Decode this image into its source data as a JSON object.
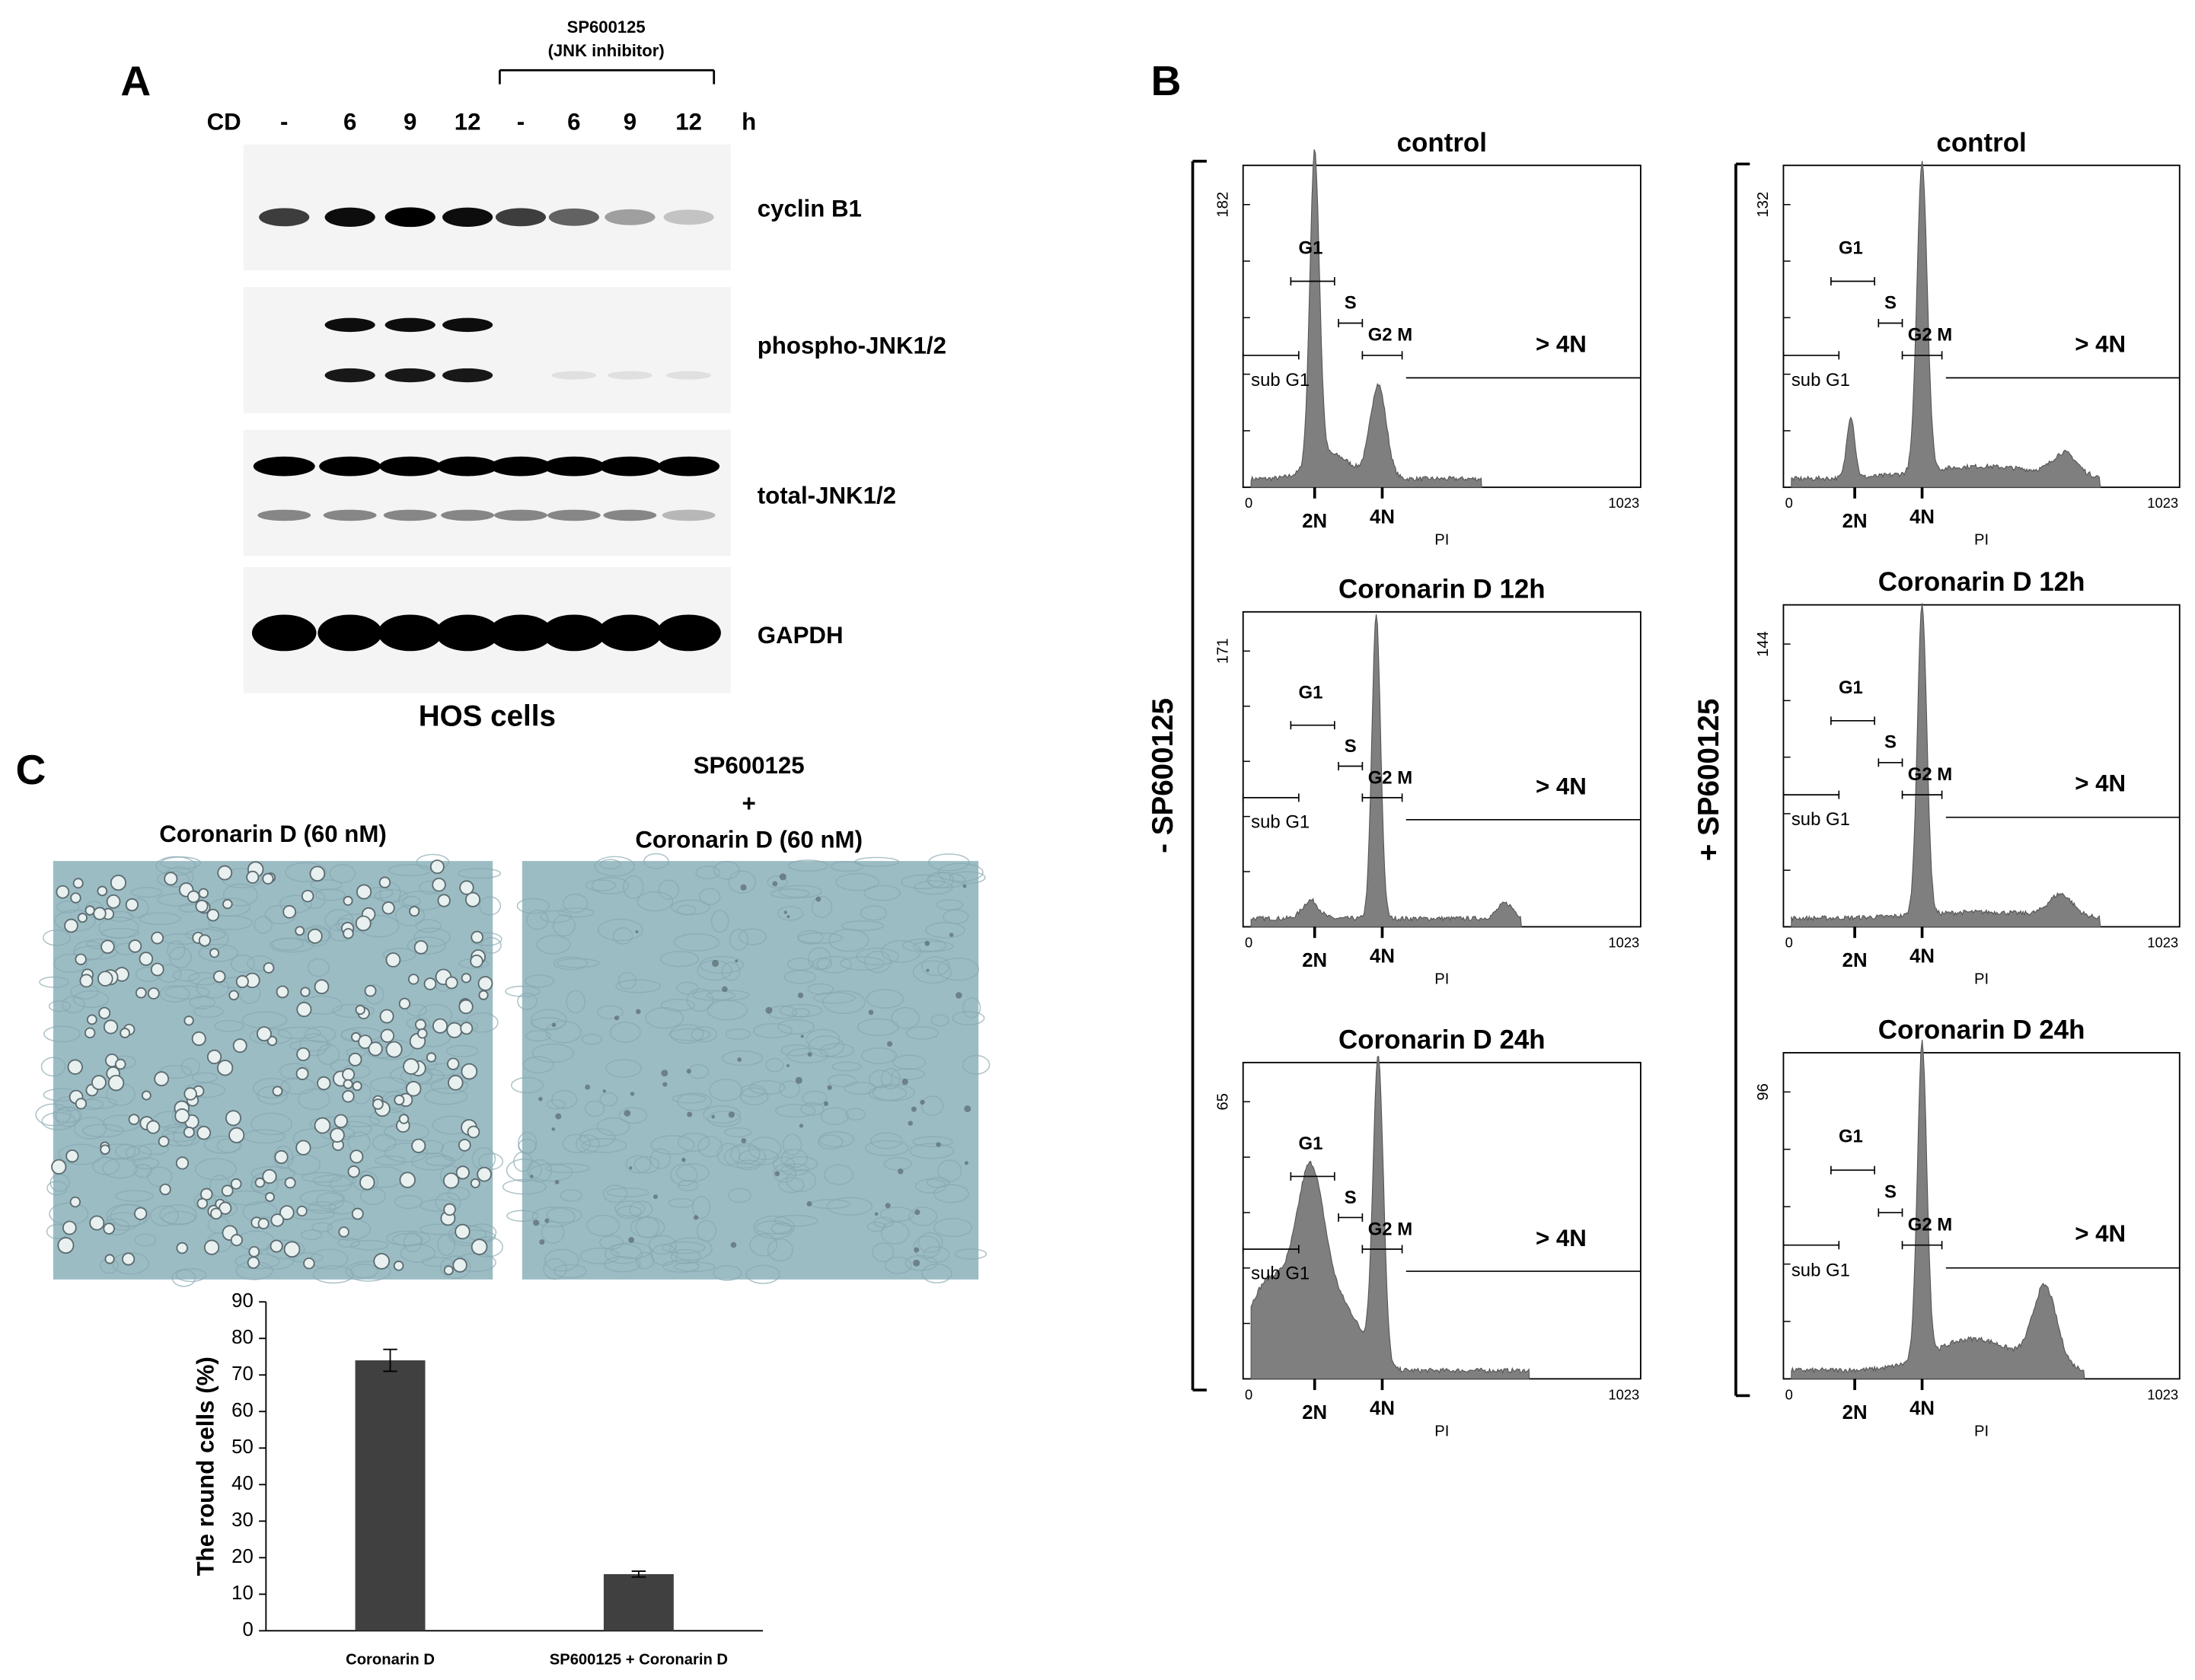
{
  "panel_a": {
    "label": "A",
    "inhibitor_label": "SP600125",
    "inhibitor_sub": "(JNK inhibitor)",
    "row_label": "CD",
    "lanes": [
      "-",
      6,
      9,
      12,
      "-",
      6,
      9,
      12
    ],
    "unit": "h",
    "blots": [
      "cyclin B1",
      "phospho-JNK1/2",
      "total-JNK1/2",
      "GAPDH"
    ],
    "caption": "HOS cells"
  },
  "panel_b": {
    "label": "B",
    "gate_labels": {
      "g1": "G1",
      "s": "S",
      "g2m": "G2 M",
      "sub_g1": "sub G1",
      "over_4n": "> 4N"
    },
    "ploidy": {
      "n2": "2N",
      "n4": "4N"
    },
    "x_axis": {
      "min": 0,
      "max": 1023,
      "label": "PI"
    },
    "groups": [
      {
        "label": "- SP600125",
        "plots": [
          {
            "title": "control",
            "ymax": 182
          },
          {
            "title": "Coronarin D 12h",
            "ymax": 171
          },
          {
            "title": "Coronarin D 24h",
            "ymax": 65
          }
        ]
      },
      {
        "label": "+ SP600125",
        "plots": [
          {
            "title": "control",
            "ymax": 132
          },
          {
            "title": "Coronarin D 12h",
            "ymax": 144
          },
          {
            "title": "Coronarin D 24h",
            "ymax": 96
          }
        ]
      }
    ]
  },
  "panel_c": {
    "label": "C",
    "image_titles": [
      [
        "Coronarin D (60 nM)"
      ],
      [
        "SP600125",
        "+",
        "Coronarin D (60 nM)"
      ]
    ],
    "chart": {
      "type": "bar",
      "ylabel": "The round cells (%)",
      "categories": [
        "Coronarin D",
        "SP600125 + Coronarin D"
      ],
      "values": [
        74,
        15.5
      ],
      "errors": [
        3,
        0.8
      ],
      "color": "#404040",
      "ylim": [
        0,
        90
      ],
      "yticks": [
        0,
        10,
        20,
        30,
        40,
        50,
        60,
        70,
        80,
        90
      ]
    }
  }
}
